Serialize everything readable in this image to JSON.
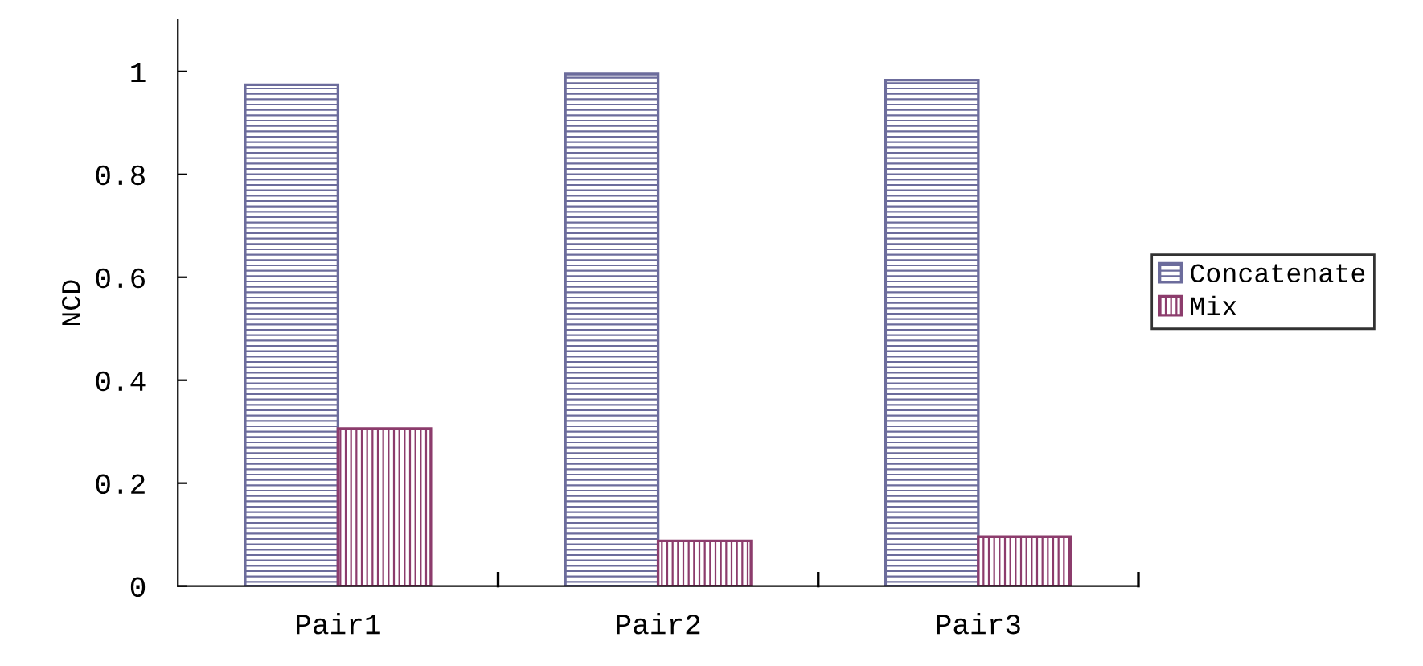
{
  "chart_data": {
    "type": "bar",
    "ylabel": "NCD",
    "categories": [
      "Pair1",
      "Pair2",
      "Pair3"
    ],
    "series": [
      {
        "name": "Concatenate",
        "color": "#6c6c9c",
        "values": [
          0.974,
          0.995,
          0.983
        ]
      },
      {
        "name": "Mix",
        "color": "#8c3c6c",
        "values": [
          0.306,
          0.088,
          0.096
        ]
      }
    ],
    "ylim": [
      0,
      1.1
    ],
    "yticks": [
      0,
      0.2,
      0.4,
      0.6,
      0.8,
      1
    ],
    "grid": false,
    "legend": "right"
  }
}
